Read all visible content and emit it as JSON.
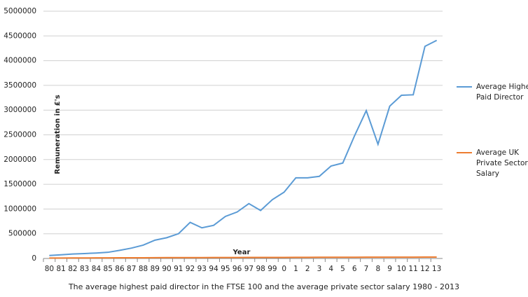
{
  "chart_data": {
    "type": "line",
    "caption": "The average highest paid director in the FTSE 100 and the average private sector salary 1980 - 2013",
    "y_label": "Remuneration in £'s",
    "x_label": "Year",
    "categories": [
      "80",
      "81",
      "82",
      "83",
      "84",
      "85",
      "86",
      "87",
      "88",
      "89",
      "90",
      "91",
      "92",
      "93",
      "94",
      "95",
      "96",
      "97",
      "98",
      "99",
      "0",
      "1",
      "2",
      "3",
      "4",
      "5",
      "6",
      "7",
      "8",
      "9",
      "10",
      "11",
      "12",
      "13"
    ],
    "series": [
      {
        "name": "Average Highest Paid Director",
        "color": "#5b9bd5",
        "values": [
          60000,
          75000,
          90000,
          100000,
          110000,
          125000,
          165000,
          210000,
          270000,
          370000,
          420000,
          500000,
          730000,
          620000,
          670000,
          850000,
          940000,
          1110000,
          970000,
          1190000,
          1340000,
          1630000,
          1630000,
          1660000,
          1870000,
          1930000,
          2480000,
          2990000,
          2310000,
          3080000,
          3300000,
          3310000,
          4290000,
          4410000
        ]
      },
      {
        "name": "Average UK Private Sector Salary",
        "color": "#ed7d31",
        "values": [
          8000,
          9000,
          10000,
          11000,
          12000,
          13000,
          14000,
          14500,
          15000,
          16000,
          17000,
          17500,
          18000,
          18500,
          19000,
          19500,
          20000,
          20500,
          21000,
          21500,
          22000,
          23000,
          23500,
          24000,
          24500,
          25000,
          25500,
          26000,
          26000,
          26500,
          27000,
          27000,
          27500,
          28000
        ]
      }
    ],
    "ylim": [
      0,
      5000000
    ],
    "yticks": [
      0,
      500000,
      1000000,
      1500000,
      2000000,
      2500000,
      3000000,
      3500000,
      4000000,
      4500000,
      5000000
    ],
    "grid": true,
    "legend": "right"
  }
}
